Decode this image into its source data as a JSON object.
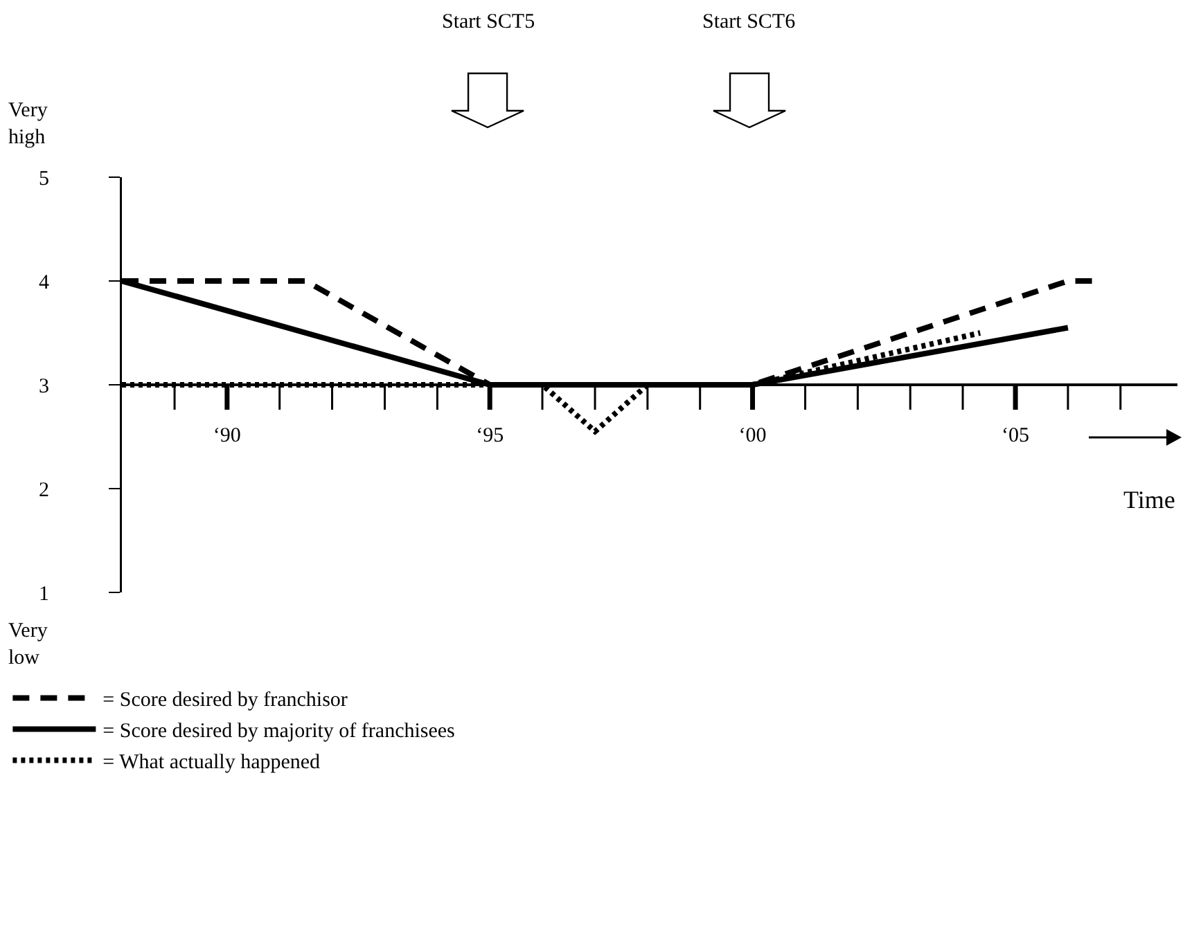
{
  "chart_data": {
    "type": "line",
    "xlabel": "Time",
    "annotations": [
      "Very high",
      "Very low",
      "Start SCT5",
      "Start SCT6"
    ],
    "series": [
      {
        "name": "= Score desired by franchisor",
        "color": "#000000",
        "line_style": "dashed",
        "x": [
          "1988",
          "1991-07",
          "1995",
          "2000",
          "2006",
          "2006-07"
        ],
        "values": [
          4,
          4,
          3,
          3,
          4,
          4
        ]
      },
      {
        "name": "= Score desired by majority of franchisees",
        "color": "#000000",
        "line_style": "solid",
        "x": [
          "1988",
          "1995",
          "2000",
          "2006"
        ],
        "values": [
          4,
          3,
          3,
          3.55
        ]
      },
      {
        "name": "= What actually happened",
        "color": "#000000",
        "line_style": "dotted",
        "x": [
          "1988",
          "1996",
          "1997",
          "1998",
          "2000",
          "2004-05"
        ],
        "values": [
          3,
          3,
          2.55,
          3,
          3,
          3.5
        ]
      }
    ],
    "xlim": [
      "1988",
      "2008-02"
    ],
    "xticks": [
      {
        "value": "1990",
        "label": "‘90"
      },
      {
        "value": "1995",
        "label": "‘95"
      },
      {
        "value": "2000",
        "label": "‘00"
      },
      {
        "value": "2005",
        "label": "‘05"
      }
    ],
    "ylim": [
      1,
      5
    ],
    "yticks": [
      1,
      2,
      3,
      4,
      5
    ],
    "grid": false,
    "legend": "bottom",
    "marker": "none"
  }
}
